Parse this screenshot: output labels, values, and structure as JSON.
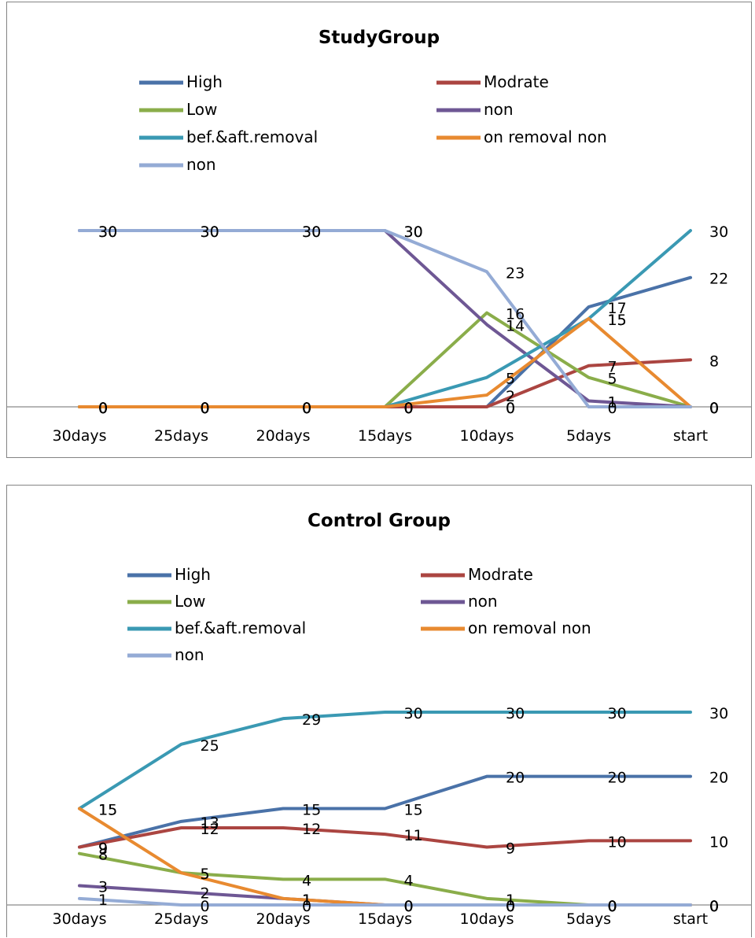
{
  "chart_data": [
    {
      "type": "line",
      "title": "StudyGroup",
      "categories": [
        "30days",
        "25days",
        "20days",
        "15days",
        "10days",
        "5days",
        "start"
      ],
      "ylim": [
        0,
        30
      ],
      "grid": false,
      "legend_position": "top",
      "series": [
        {
          "name": "High",
          "color": "#4a72a8",
          "values": [
            0,
            0,
            0,
            0,
            0,
            17,
            22
          ]
        },
        {
          "name": "Modrate",
          "color": "#ab4541",
          "values": [
            0,
            0,
            0,
            0,
            0,
            7,
            8
          ]
        },
        {
          "name": "Low",
          "color": "#8aad4a",
          "values": [
            0,
            0,
            0,
            0,
            16,
            5,
            0
          ]
        },
        {
          "name": "non",
          "color": "#6e5794",
          "values": [
            30,
            30,
            30,
            30,
            14,
            1,
            0
          ]
        },
        {
          "name": "bef.&aft.removal",
          "color": "#3a99b3",
          "values": [
            0,
            0,
            0,
            0,
            5,
            15,
            30
          ]
        },
        {
          "name": "on removal non",
          "color": "#e88a30",
          "values": [
            0,
            0,
            0,
            0,
            2,
            15,
            0
          ]
        },
        {
          "name": "non",
          "color": "#94abd5",
          "values": [
            30,
            30,
            30,
            30,
            23,
            0,
            0
          ]
        }
      ]
    },
    {
      "type": "line",
      "title": "Control Group",
      "categories": [
        "30days",
        "25days",
        "20days",
        "15days",
        "10days",
        "5days",
        "start"
      ],
      "ylim": [
        0,
        30
      ],
      "grid": false,
      "legend_position": "top",
      "series": [
        {
          "name": "High",
          "color": "#4a72a8",
          "values": [
            9,
            13,
            15,
            15,
            20,
            20,
            20
          ]
        },
        {
          "name": "Modrate",
          "color": "#ab4541",
          "values": [
            9,
            12,
            12,
            11,
            9,
            10,
            10
          ]
        },
        {
          "name": "Low",
          "color": "#8aad4a",
          "values": [
            8,
            5,
            4,
            4,
            1,
            0,
            0
          ]
        },
        {
          "name": "non",
          "color": "#6e5794",
          "values": [
            3,
            2,
            1,
            0,
            0,
            0,
            0
          ]
        },
        {
          "name": "bef.&aft.removal",
          "color": "#3a99b3",
          "values": [
            15,
            25,
            29,
            30,
            30,
            30,
            30
          ]
        },
        {
          "name": "on removal non",
          "color": "#e88a30",
          "values": [
            15,
            5,
            1,
            0,
            0,
            0,
            0
          ]
        },
        {
          "name": "non",
          "color": "#94abd5",
          "values": [
            1,
            0,
            0,
            0,
            0,
            0,
            0
          ]
        }
      ]
    }
  ]
}
